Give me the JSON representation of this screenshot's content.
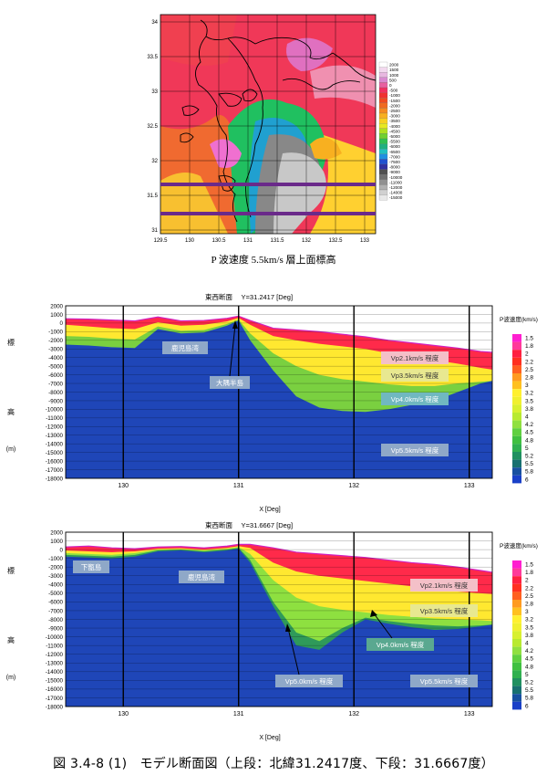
{
  "map": {
    "caption": "P 波速度 5.5km/s 層上面標高",
    "x_ticks": [
      "129.5",
      "130",
      "130.5",
      "131",
      "131.5",
      "132",
      "132.5",
      "133"
    ],
    "y_ticks": [
      "34",
      "33.5",
      "33",
      "32.5",
      "32",
      "31.5",
      "31"
    ],
    "legend": [
      "2000",
      "1500",
      "1000",
      "500",
      "0",
      "-500",
      "-1000",
      "-1500",
      "-2000",
      "-2500",
      "-3000",
      "-3500",
      "-4000",
      "-4500",
      "-5000",
      "-5500",
      "-6000",
      "-6500",
      "-7000",
      "-7500",
      "-8000",
      "-9000",
      "-10000",
      "-11000",
      "-12000",
      "-14000",
      "-15000"
    ],
    "legend_colors": [
      "#ffffff",
      "#f2d9ee",
      "#e8b8e0",
      "#d98ad0",
      "#e860a0",
      "#f03060",
      "#f03030",
      "#f04a20",
      "#f06a20",
      "#f58a20",
      "#f8b020",
      "#f8d020",
      "#e8e820",
      "#b0e020",
      "#70d030",
      "#30c050",
      "#20b080",
      "#20c0c0",
      "#2090e0",
      "#2050d0",
      "#3030a0",
      "#505050",
      "#707070",
      "#909090",
      "#b0b0b0",
      "#d0d0d0",
      "#e8e8e8"
    ]
  },
  "section_top": {
    "title": "東西断面　 Y=31.2417 [Deg]",
    "xlabel": "X [Deg]",
    "ylabel_chars": [
      "標",
      "高",
      "(m)"
    ],
    "legend_title": "P波速度(km/s)",
    "labels": [
      "鹿児島湾",
      "大隅半島",
      "Vp2.1km/s 程度",
      "Vp3.5km/s 程度",
      "Vp4.0km/s 程度",
      "Vp5.5km/s 程度"
    ]
  },
  "section_bottom": {
    "title": "東西断面　 Y=31.6667 [Deg]",
    "xlabel": "X [Deg]",
    "ylabel_chars": [
      "標",
      "高",
      "(m)"
    ],
    "legend_title": "P波速度(km/s)",
    "labels": [
      "下甑島",
      "鹿児島湾",
      "Vp2.1km/s 程度",
      "Vp3.5km/s 程度",
      "Vp4.0km/s 程度",
      "Vp5.0km/s 程度",
      "Vp5.5km/s 程度"
    ]
  },
  "velocity_scale": {
    "values": [
      "1.5",
      "1.8",
      "2",
      "2.2",
      "2.5",
      "2.8",
      "3",
      "3.2",
      "3.5",
      "3.8",
      "4",
      "4.2",
      "4.5",
      "4.8",
      "5",
      "5.2",
      "5.5",
      "5.8",
      "6"
    ],
    "colors": [
      "#ff1fd0",
      "#ff3a9a",
      "#ff2040",
      "#ff3020",
      "#ff6020",
      "#ff9a20",
      "#ffc020",
      "#fff030",
      "#f0f030",
      "#d8f030",
      "#b8ea30",
      "#90e040",
      "#60d040",
      "#40c040",
      "#30b050",
      "#209060",
      "#187070",
      "#1850a0",
      "#1a40c8"
    ]
  },
  "chart_data": [
    {
      "type": "heatmap",
      "title": "P 波速度 5.5km/s 層上面標高",
      "x_ticks": [
        129.5,
        130,
        130.5,
        131,
        131.5,
        132,
        132.5,
        133
      ],
      "y_ticks": [
        34,
        33.5,
        33,
        32.5,
        32,
        31.5,
        31
      ],
      "xlim": [
        129.5,
        133.2
      ],
      "ylim": [
        30.9,
        34.1
      ],
      "legend_values_m": [
        2000,
        1500,
        1000,
        500,
        0,
        -500,
        -1000,
        -1500,
        -2000,
        -2500,
        -3000,
        -3500,
        -4000,
        -4500,
        -5000,
        -5500,
        -6000,
        -6500,
        -7000,
        -7500,
        -8000,
        -9000,
        -10000,
        -11000,
        -12000,
        -14000,
        -15000
      ],
      "section_lines_lat": [
        31.6667,
        31.2417
      ]
    },
    {
      "type": "area",
      "title": "東西断面 Y=31.2417 [Deg]",
      "xlabel": "X [Deg]",
      "ylabel": "標高 (m)",
      "xlim": [
        129.5,
        133.2
      ],
      "ylim": [
        -18000,
        2000
      ],
      "x_ticks": [
        130,
        131,
        132,
        133
      ],
      "y_ticks": [
        2000,
        1000,
        0,
        -1000,
        -2000,
        -3000,
        -4000,
        -5000,
        -6000,
        -7000,
        -8000,
        -9000,
        -10000,
        -11000,
        -12000,
        -13000,
        -14000,
        -15000,
        -16000,
        -17000,
        -18000
      ],
      "x": [
        129.5,
        129.7,
        129.9,
        130.1,
        130.3,
        130.5,
        130.7,
        130.9,
        131.0,
        131.1,
        131.3,
        131.5,
        131.7,
        131.9,
        132.1,
        132.3,
        132.5,
        132.7,
        132.9,
        133.1,
        133.2
      ],
      "series": [
        {
          "name": "Vp2.1km/s 程度",
          "values": [
            500,
            450,
            350,
            250,
            700,
            250,
            300,
            550,
            800,
            300,
            -600,
            -800,
            -1000,
            -1300,
            -1600,
            -2000,
            -2300,
            -2600,
            -2900,
            -3300,
            -3400
          ]
        },
        {
          "name": "Vp3.5km/s 程度",
          "values": [
            -200,
            -400,
            -600,
            -700,
            100,
            -300,
            -200,
            200,
            600,
            -200,
            -1500,
            -2000,
            -2400,
            -2700,
            -3000,
            -3500,
            -3900,
            -4300,
            -4700,
            -5200,
            -5400
          ]
        },
        {
          "name": "Vp4.0km/s 程度",
          "values": [
            -1500,
            -1600,
            -1800,
            -1900,
            -400,
            -900,
            -800,
            -100,
            400,
            -1200,
            -3500,
            -5000,
            -6000,
            -6500,
            -6800,
            -7100,
            -7300,
            -7300,
            -7000,
            -6800,
            -6700
          ]
        },
        {
          "name": "Vp5.5km/s 程度",
          "values": [
            -2500,
            -2600,
            -2800,
            -2900,
            -700,
            -1200,
            -1100,
            -300,
            300,
            -2000,
            -5500,
            -8500,
            -9800,
            -10200,
            -10300,
            -10000,
            -9500,
            -9000,
            -8000,
            -7000,
            -6700
          ]
        }
      ]
    },
    {
      "type": "area",
      "title": "東西断面 Y=31.6667 [Deg]",
      "xlabel": "X [Deg]",
      "ylabel": "標高 (m)",
      "xlim": [
        129.5,
        133.2
      ],
      "ylim": [
        -18000,
        2000
      ],
      "x_ticks": [
        130,
        131,
        132,
        133
      ],
      "y_ticks": [
        2000,
        1000,
        0,
        -1000,
        -2000,
        -3000,
        -4000,
        -5000,
        -6000,
        -7000,
        -8000,
        -9000,
        -10000,
        -11000,
        -12000,
        -13000,
        -14000,
        -15000,
        -16000,
        -17000,
        -18000
      ],
      "x": [
        129.5,
        129.7,
        129.9,
        130.1,
        130.3,
        130.5,
        130.7,
        130.9,
        131.0,
        131.1,
        131.3,
        131.5,
        131.7,
        131.9,
        132.1,
        132.3,
        132.5,
        132.7,
        132.9,
        133.1,
        133.2
      ],
      "series": [
        {
          "name": "Vp2.1km/s 程度",
          "values": [
            300,
            400,
            200,
            100,
            300,
            350,
            200,
            400,
            600,
            600,
            200,
            -300,
            -500,
            -700,
            -900,
            -1200,
            -1500,
            -1700,
            -2000,
            -2400,
            -2600
          ]
        },
        {
          "name": "Vp3.5km/s 程度",
          "values": [
            -100,
            -200,
            -300,
            -200,
            100,
            150,
            0,
            200,
            400,
            200,
            -1500,
            -2500,
            -3000,
            -3300,
            -3600,
            -3900,
            -4200,
            -4500,
            -4800,
            -5000,
            -5100
          ]
        },
        {
          "name": "Vp4.0km/s 程度",
          "values": [
            -400,
            -500,
            -600,
            -400,
            0,
            50,
            -100,
            100,
            300,
            -500,
            -3500,
            -5500,
            -6500,
            -6900,
            -7200,
            -7500,
            -7700,
            -7900,
            -8000,
            -8100,
            -8200
          ]
        },
        {
          "name": "Vp5.0km/s 程度",
          "values": [
            -600,
            -700,
            -800,
            -600,
            -100,
            0,
            -200,
            0,
            200,
            -1200,
            -6000,
            -9500,
            -10500,
            -9000,
            -7800,
            -8200,
            -8500,
            -8700,
            -8800,
            -8700,
            -8600
          ]
        },
        {
          "name": "Vp5.5km/s 程度",
          "values": [
            -800,
            -900,
            -1000,
            -800,
            -200,
            -100,
            -300,
            -100,
            100,
            -1500,
            -6500,
            -11000,
            -11500,
            -9500,
            -8000,
            -8500,
            -8900,
            -9200,
            -9100,
            -8800,
            -8600
          ]
        }
      ]
    }
  ],
  "figure_caption": "図 3.4-8 (1)　モデル断面図（上段：北緯31.2417度、下段：31.6667度）"
}
